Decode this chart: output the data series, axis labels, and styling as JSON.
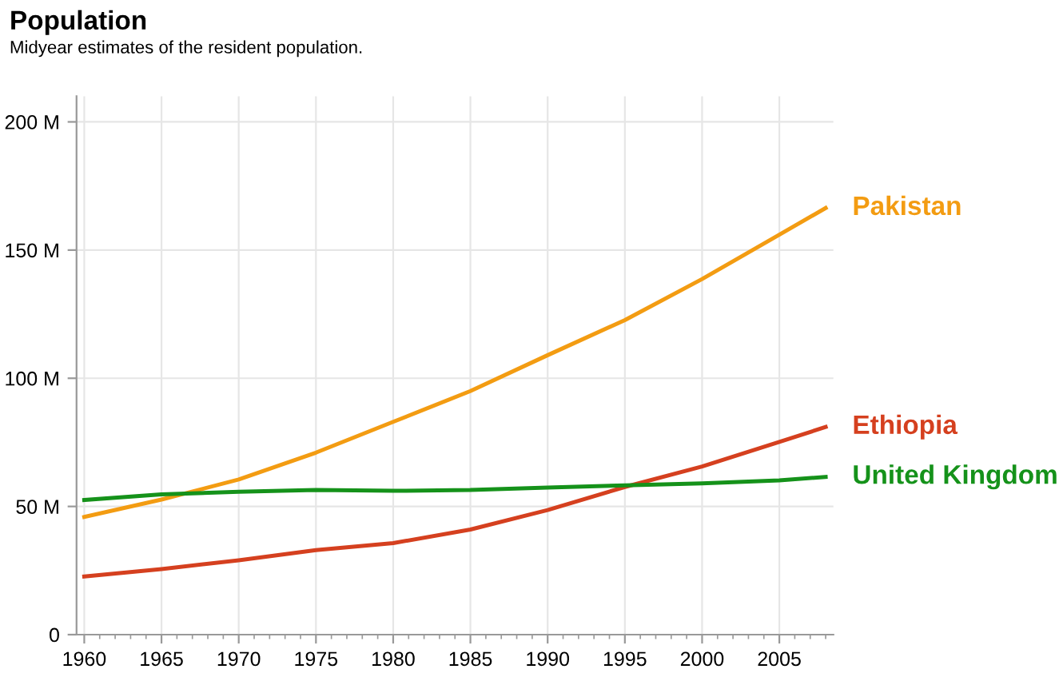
{
  "chart_data": {
    "type": "line",
    "title": "Population",
    "subtitle": "Midyear estimates of the resident population.",
    "x": [
      1960,
      1965,
      1970,
      1975,
      1980,
      1985,
      1990,
      1995,
      2000,
      2005,
      2008
    ],
    "series": [
      {
        "name": "Pakistan",
        "color": "#f39c12",
        "values": [
          45.9,
          52.7,
          60.5,
          71,
          83,
          95,
          109,
          122.7,
          138.7,
          156,
          166.4
        ]
      },
      {
        "name": "Ethiopia",
        "color": "#d5401f",
        "values": [
          22.7,
          25.6,
          29,
          33,
          35.7,
          41,
          48.6,
          57.6,
          65.6,
          75.2,
          81
        ]
      },
      {
        "name": "United Kingdom",
        "color": "#15921a",
        "values": [
          52.5,
          54.7,
          55.7,
          56.4,
          56.1,
          56.4,
          57.4,
          58.2,
          59,
          60.2,
          61.5
        ]
      }
    ],
    "xlim": [
      1959.5,
      2008.5
    ],
    "ylim": [
      0,
      210
    ],
    "xticks": [
      1960,
      1965,
      1970,
      1975,
      1980,
      1985,
      1990,
      1995,
      2000,
      2005
    ],
    "yticks": [
      0,
      {
        "value": 50,
        "label": "50 M"
      },
      {
        "value": 100,
        "label": "100 M"
      },
      {
        "value": 150,
        "label": "150 M"
      },
      {
        "value": 200,
        "label": "200 M"
      }
    ],
    "grid": true,
    "legend": false,
    "marker": "none",
    "line_style": "solid"
  }
}
